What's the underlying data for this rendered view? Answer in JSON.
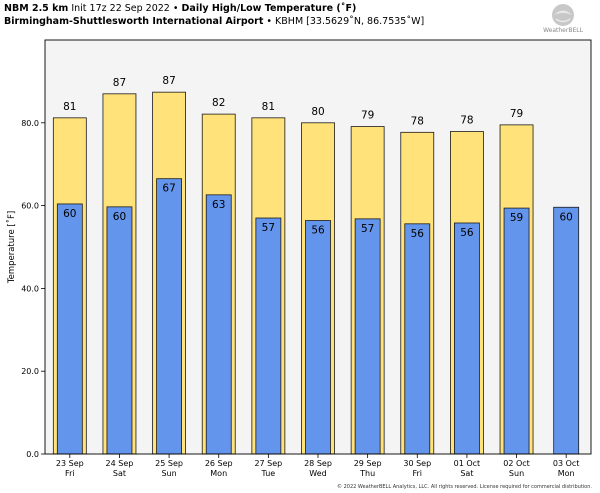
{
  "header": {
    "model_name": "NBM 2.5 km",
    "init_text": "Init 17z 22 Sep 2022",
    "bullet": "•",
    "product_title": "Daily High/Low Temperature (˚F)",
    "station_name": "Birmingham-Shuttlesworth International Airport",
    "station_info": "KBHM [33.5629˚N, 86.7535˚W]"
  },
  "logo": {
    "text": "WeatherBELL"
  },
  "footer": {
    "copyright": "© 2022 WeatherBELL Analytics, LLC. All rights reserved. License required for commercial distribution."
  },
  "colors": {
    "high_bar": "#ffe27a",
    "low_bar": "#6495ed",
    "plot_bg": "#f4f4f4",
    "bar_edge": "#1a1a1a"
  },
  "chart_data": {
    "type": "bar",
    "ylabel": "Temperature [˚F]",
    "ylim": [
      0,
      100
    ],
    "yticks": [
      0,
      20,
      40,
      60,
      80
    ],
    "ytick_labels": [
      "0.0",
      "20.0",
      "40.0",
      "60.0",
      "80.0"
    ],
    "categories": [
      [
        "23 Sep",
        "Fri"
      ],
      [
        "24 Sep",
        "Sat"
      ],
      [
        "25 Sep",
        "Sun"
      ],
      [
        "26 Sep",
        "Mon"
      ],
      [
        "27 Sep",
        "Tue"
      ],
      [
        "28 Sep",
        "Wed"
      ],
      [
        "29 Sep",
        "Thu"
      ],
      [
        "30 Sep",
        "Fri"
      ],
      [
        "01 Oct",
        "Sat"
      ],
      [
        "02 Oct",
        "Sun"
      ],
      [
        "03 Oct",
        "Mon"
      ]
    ],
    "series": [
      {
        "key": "high",
        "values": [
          81.2,
          87.0,
          87.4,
          82.1,
          81.2,
          80.0,
          79.1,
          77.7,
          77.9,
          79.5,
          null
        ],
        "labels": [
          "81",
          "87",
          "87",
          "82",
          "81",
          "80",
          "79",
          "78",
          "78",
          "79",
          ""
        ]
      },
      {
        "key": "low",
        "values": [
          60.4,
          59.7,
          66.5,
          62.6,
          57.0,
          56.4,
          56.8,
          55.6,
          55.8,
          59.4,
          59.6
        ],
        "labels": [
          "60",
          "60",
          "67",
          "63",
          "57",
          "56",
          "57",
          "56",
          "56",
          "59",
          "60"
        ]
      }
    ]
  }
}
